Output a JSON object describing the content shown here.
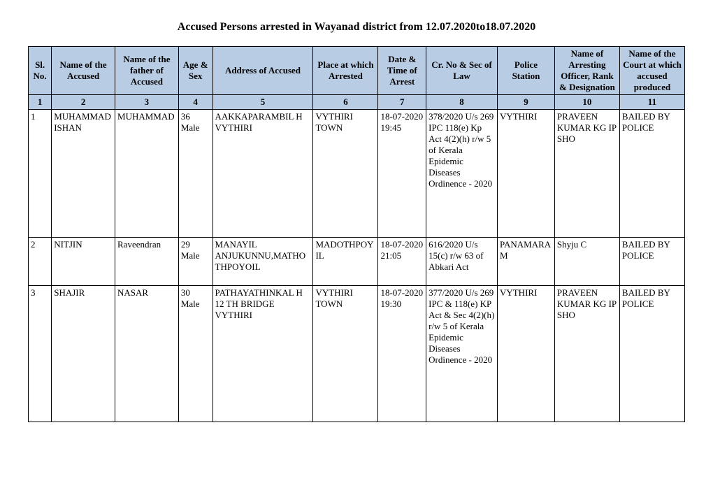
{
  "title": "Accused Persons arrested in  Wayanad  district from  12.07.2020to18.07.2020",
  "headers": [
    "Sl. No.",
    "Name of the Accused",
    "Name of the father of Accused",
    "Age & Sex",
    "Address of Accused",
    "Place at which Arrested",
    "Date & Time of Arrest",
    "Cr. No & Sec of Law",
    "Police Station",
    "Name of Arresting Officer, Rank & Designation",
    "Name of the Court at which accused produced"
  ],
  "colnums": [
    "1",
    "2",
    "3",
    "4",
    "5",
    "6",
    "7",
    "8",
    "9",
    "10",
    "11"
  ],
  "rows": [
    {
      "c1": "1",
      "c2": "MUHAMMAD ISHAN",
      "c3": "MUHAMMAD",
      "c4": "36 Male",
      "c5": "AAKKAPARAMBIL H VYTHIRI",
      "c6": "VYTHIRI TOWN",
      "c7": "18-07-2020 19:45",
      "c8": "378/2020 U/s 269 IPC 118(e) Kp Act 4(2)(h) r/w 5 of Kerala Epidemic Diseases Ordinence - 2020",
      "c9": "VYTHIRI",
      "c10": "PRAVEEN KUMAR KG IP SHO",
      "c11": "BAILED BY POLICE"
    },
    {
      "c1": "2",
      "c2": "NITJIN",
      "c3": "Raveendran",
      "c4": "29 Male",
      "c5": "MANAYIL ANJUKUNNU,MATHOTHPOYOIL",
      "c6": "MADOTHPOYIL",
      "c7": "18-07-2020 21:05",
      "c8": "616/2020 U/s 15(c) r/w 63 of Abkari Act",
      "c9": "PANAMARAM",
      "c10": "Shyju C",
      "c11": "BAILED BY POLICE"
    },
    {
      "c1": "3",
      "c2": "SHAJIR",
      "c3": "NASAR",
      "c4": "30 Male",
      "c5": "PATHAYATHINKAL H 12 TH BRIDGE VYTHIRI",
      "c6": "VYTHIRI TOWN",
      "c7": "18-07-2020 19:30",
      "c8": "377/2020 U/s 269 IPC & 118(e) KP Act & Sec 4(2)(h) r/w 5 of Kerala Epidemic Diseases Ordinence - 2020",
      "c9": "VYTHIRI",
      "c10": "PRAVEEN KUMAR KG IP SHO",
      "c11": "BAILED BY POLICE"
    }
  ]
}
